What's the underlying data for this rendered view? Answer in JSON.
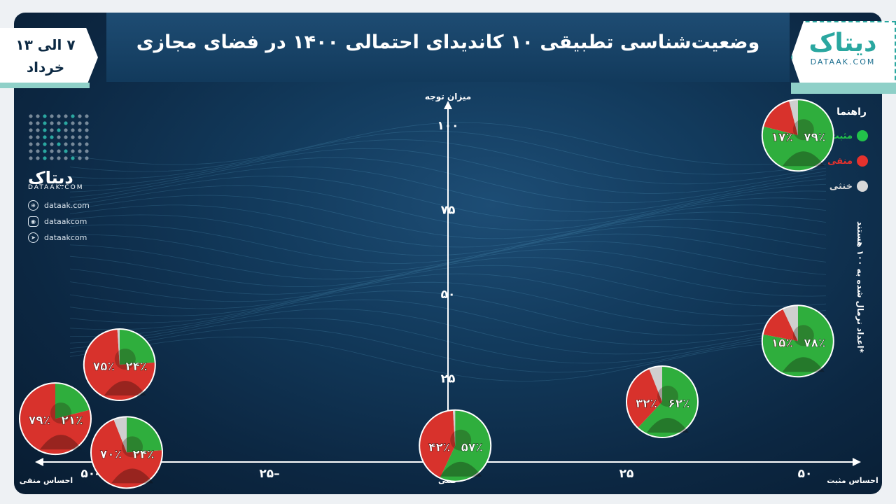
{
  "header": {
    "title": "وضعیت‌شناسی تطبیقی ۱۰ کاندیدای احتمالی ۱۴۰۰ در فضای مجازی",
    "date_line1": "۷ الی ۱۳",
    "date_line2": "خرداد"
  },
  "brand": {
    "logo_glyph": "دیتاک",
    "logo_text": "DATAAK.COM",
    "side_name": "دیتاک",
    "side_sub": "DATAAK.COM",
    "website": "dataak.com",
    "instagram": "dataakcom",
    "telegram": "dataakcom",
    "accent_color": "#2aa7a0"
  },
  "legend": {
    "title": "راهنما",
    "items": [
      {
        "label": "مثبت",
        "color": "#22c14a"
      },
      {
        "label": "منفی",
        "color": "#e5322d"
      },
      {
        "label": "خنثی",
        "color": "#d9d9d9"
      }
    ]
  },
  "note": "*اعداد نرمال شده به ۱۰۰ هستند",
  "chart_data": {
    "type": "scatter",
    "title": "وضعیت‌شناسی تطبیقی ۱۰ کاندیدای احتمالی ۱۴۰۰ در فضای مجازی",
    "xlabel_positive": "احساس مثبت",
    "xlabel_negative": "احساس منفی",
    "xlabel_neutral": "خنثی",
    "ylabel": "میزان توجه",
    "xlim": [
      -50,
      50
    ],
    "ylim": [
      0,
      100
    ],
    "x_ticks": [
      {
        "v": -50,
        "label": "۵۰–"
      },
      {
        "v": -25,
        "label": "۲۵–"
      },
      {
        "v": 0,
        "label": "۰"
      },
      {
        "v": 25,
        "label": "۲۵"
      },
      {
        "v": 50,
        "label": "۵۰"
      }
    ],
    "y_ticks": [
      {
        "v": 25,
        "label": "۲۵"
      },
      {
        "v": 50,
        "label": "۵۰"
      },
      {
        "v": 75,
        "label": "۷۵"
      },
      {
        "v": 100,
        "label": "۱۰۰"
      }
    ],
    "points": [
      {
        "x": 49,
        "y": 96,
        "positive": 79,
        "negative": 17,
        "neutral": 4,
        "pos_label": "۷۹٪",
        "neg_label": "۱۷٪"
      },
      {
        "x": 49,
        "y": 35,
        "positive": 78,
        "negative": 15,
        "neutral": 7,
        "pos_label": "۷۸٪",
        "neg_label": "۱۵٪"
      },
      {
        "x": 30,
        "y": 17,
        "positive": 62,
        "negative": 32,
        "neutral": 6,
        "pos_label": "۶۲٪",
        "neg_label": "۳۲٪"
      },
      {
        "x": 1,
        "y": 4,
        "positive": 57,
        "negative": 42,
        "neutral": 1,
        "pos_label": "۵۷٪",
        "neg_label": "۴۲٪"
      },
      {
        "x": -46,
        "y": 28,
        "positive": 24,
        "negative": 75,
        "neutral": 1,
        "pos_label": "۲۴٪",
        "neg_label": "۷۵٪"
      },
      {
        "x": -55,
        "y": 12,
        "positive": 21,
        "negative": 79,
        "neutral": 0,
        "pos_label": "۲۱٪",
        "neg_label": "۷۹٪"
      },
      {
        "x": -45,
        "y": 2,
        "positive": 24,
        "negative": 70,
        "neutral": 6,
        "pos_label": "۲۴٪",
        "neg_label": "۷۰٪"
      }
    ]
  }
}
